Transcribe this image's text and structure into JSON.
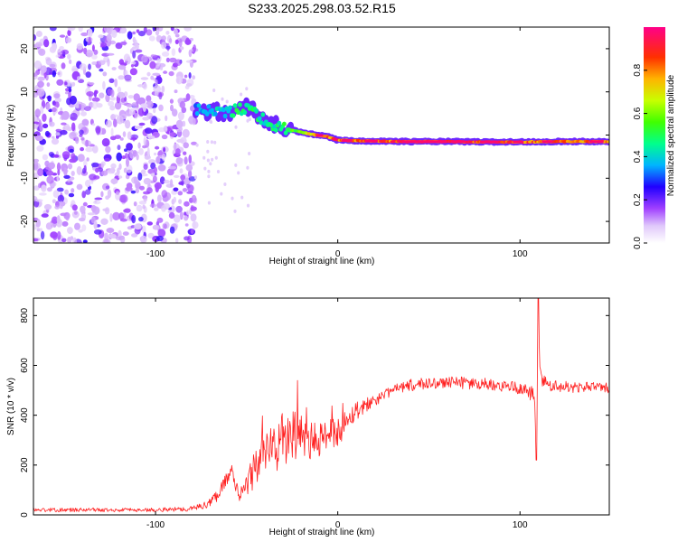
{
  "page": {
    "title": "S233.2025.298.03.52.R15"
  },
  "chart_data": [
    {
      "type": "heatmap",
      "title": "S233.2025.298.03.52.R15",
      "xlabel": "Height of straight line (km)",
      "ylabel": "Frequency (Hz)",
      "xlim": [
        -167,
        149
      ],
      "ylim": [
        -25,
        25
      ],
      "x_ticks": [
        -100,
        0,
        100
      ],
      "y_ticks": [
        -20,
        -10,
        0,
        10,
        20
      ],
      "x_tick_labels": [
        "-100",
        "0",
        "100"
      ],
      "y_tick_labels": [
        "-20",
        "-10",
        "0",
        "10",
        "20"
      ],
      "colorbar": {
        "label": "Normalized spectral amplitude",
        "range": [
          0,
          1
        ],
        "ticks": [
          0.0,
          0.2,
          0.4,
          0.6,
          0.8
        ],
        "tick_labels": [
          "0.0",
          "0.2",
          "0.4",
          "0.6",
          "0.8"
        ],
        "colormap": [
          "#ffffff",
          "#d8b8f8",
          "#8800ff",
          "#0000ff",
          "#00c8ff",
          "#00ff60",
          "#c8ff00",
          "#ff8800",
          "#ff0000",
          "#ff0088"
        ]
      },
      "noise_region_x": [
        -167,
        -78
      ],
      "signal_track": {
        "x": [
          -78,
          -70,
          -62,
          -55,
          -48,
          -42,
          -36,
          -30,
          -24,
          -18,
          -12,
          -6,
          0,
          10,
          20,
          40,
          60,
          80,
          100,
          120,
          149
        ],
        "freq": [
          6,
          5.5,
          5,
          6,
          6.5,
          4,
          2.5,
          1.5,
          1,
          0.5,
          0,
          -0.3,
          -1.2,
          -1.3,
          -1.4,
          -1.5,
          -1.5,
          -1.6,
          -1.6,
          -1.5,
          -1.5
        ],
        "level": [
          0.35,
          0.4,
          0.4,
          0.5,
          0.5,
          0.45,
          0.45,
          0.5,
          0.55,
          0.7,
          0.75,
          0.8,
          0.85,
          0.85,
          0.85,
          0.9,
          0.9,
          0.9,
          0.85,
          0.85,
          0.85
        ]
      }
    },
    {
      "type": "line",
      "xlabel": "Height of straight line (km)",
      "ylabel": "SNR (10 * v/v)",
      "xlim": [
        -167,
        149
      ],
      "ylim": [
        0,
        870
      ],
      "x_ticks": [
        -100,
        0,
        100
      ],
      "y_ticks": [
        0,
        200,
        400,
        600,
        800
      ],
      "x_tick_labels": [
        "-100",
        "0",
        "100"
      ],
      "y_tick_labels": [
        "0",
        "200",
        "400",
        "600",
        "800"
      ],
      "series": [
        {
          "name": "SNR",
          "color": "#ff2020",
          "x": [
            -167,
            -130,
            -100,
            -80,
            -72,
            -66,
            -62,
            -58,
            -54,
            -50,
            -45,
            -40,
            -35,
            -30,
            -25,
            -20,
            -15,
            -10,
            -5,
            0,
            5,
            10,
            15,
            20,
            25,
            30,
            40,
            50,
            60,
            70,
            80,
            90,
            100,
            104,
            108,
            109,
            110,
            111,
            112,
            116,
            120,
            130,
            140,
            149
          ],
          "base": [
            20,
            20,
            20,
            25,
            40,
            80,
            140,
            180,
            60,
            120,
            200,
            240,
            280,
            300,
            300,
            330,
            290,
            300,
            330,
            330,
            380,
            420,
            440,
            460,
            480,
            500,
            520,
            530,
            530,
            530,
            525,
            520,
            510,
            505,
            480,
            220,
            880,
            560,
            540,
            520,
            520,
            510,
            515,
            510
          ],
          "jitter": [
            8,
            8,
            8,
            10,
            15,
            25,
            35,
            20,
            30,
            60,
            80,
            100,
            120,
            120,
            110,
            100,
            80,
            70,
            60,
            60,
            50,
            40,
            30,
            25,
            22,
            20,
            25,
            25,
            25,
            25,
            25,
            25,
            25,
            30,
            40,
            0,
            0,
            40,
            30,
            25,
            25,
            22,
            22,
            20
          ]
        }
      ]
    }
  ]
}
